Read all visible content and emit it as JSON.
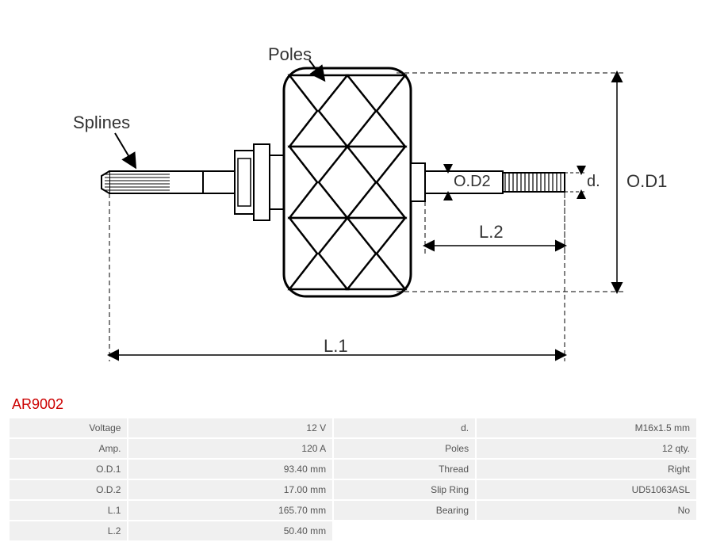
{
  "diagram": {
    "labels": {
      "poles": "Poles",
      "splines": "Splines",
      "od1": "O.D1",
      "od2": "O.D2",
      "d": "d.",
      "l1": "L.1",
      "l2": "L.2"
    },
    "colors": {
      "stroke": "#000000",
      "dash": "#000000",
      "text": "#333333",
      "bg": "#ffffff"
    },
    "styling": {
      "label_fontsize": 22,
      "stroke_width": 2,
      "dash_pattern": "6,4"
    }
  },
  "part_number": "AR9002",
  "part_number_color": "#cc0000",
  "specs": {
    "left": [
      {
        "key": "Voltage",
        "value": "12 V"
      },
      {
        "key": "Amp.",
        "value": "120 A"
      },
      {
        "key": "O.D.1",
        "value": "93.40 mm"
      },
      {
        "key": "O.D.2",
        "value": "17.00 mm"
      },
      {
        "key": "L.1",
        "value": "165.70 mm"
      },
      {
        "key": "L.2",
        "value": "50.40 mm"
      }
    ],
    "right": [
      {
        "key": "d.",
        "value": "M16x1.5 mm"
      },
      {
        "key": "Poles",
        "value": "12 qty."
      },
      {
        "key": "Thread",
        "value": "Right"
      },
      {
        "key": "Slip Ring",
        "value": "UD51063ASL"
      },
      {
        "key": "Bearing",
        "value": "No"
      },
      {
        "key": "",
        "value": ""
      }
    ]
  },
  "table_style": {
    "cell_bg": "#f0f0f0",
    "text_color": "#555555",
    "font_size": 12
  }
}
